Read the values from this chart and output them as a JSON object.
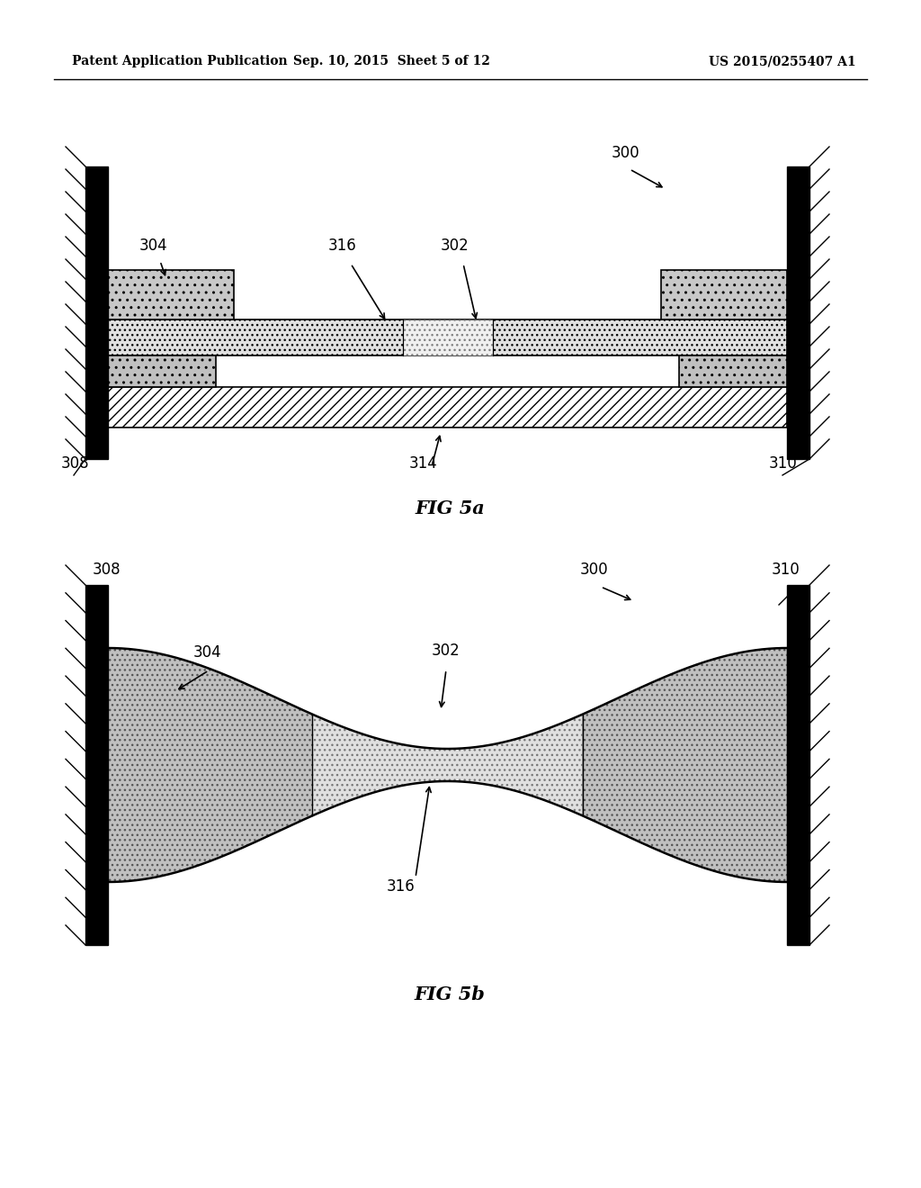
{
  "header_left": "Patent Application Publication",
  "header_center": "Sep. 10, 2015  Sheet 5 of 12",
  "header_right": "US 2015/0255407 A1",
  "fig5a_label": "FIG 5a",
  "fig5b_label": "FIG 5b",
  "background_color": "#ffffff"
}
